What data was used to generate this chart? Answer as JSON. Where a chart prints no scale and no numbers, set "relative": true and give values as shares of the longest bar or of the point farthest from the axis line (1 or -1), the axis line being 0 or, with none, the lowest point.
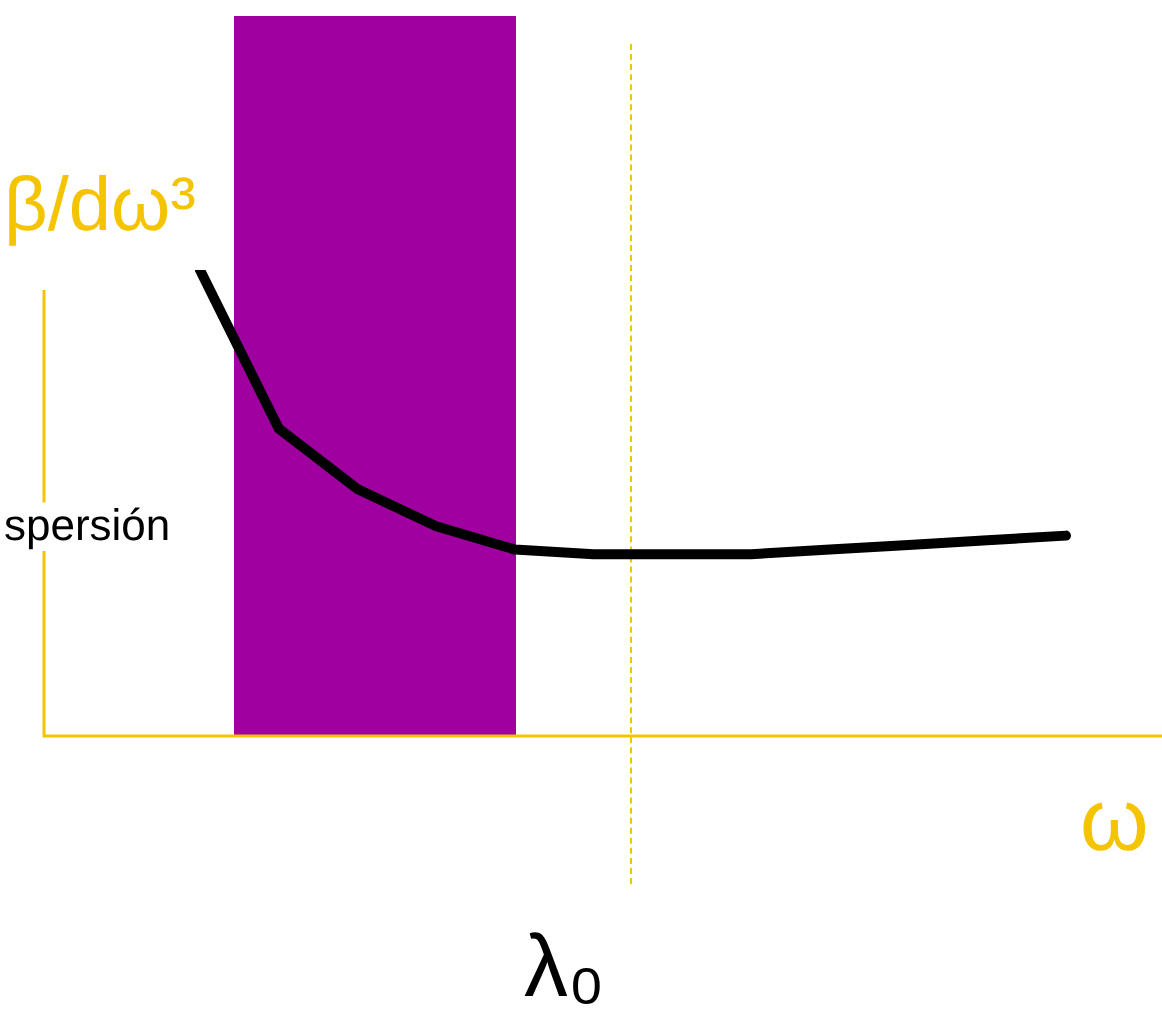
{
  "chart_data": {
    "type": "line",
    "relative": true,
    "marker": "none",
    "line_style": "solid",
    "ylabel": "β/dω³",
    "xlabel": "ω",
    "annotations": [
      "spersión",
      "λ₀"
    ],
    "categories": [
      null,
      null,
      null,
      null,
      null,
      null,
      null,
      null,
      null,
      null,
      null,
      null
    ],
    "series": [
      {
        "color": "#000000",
        "values": [
          1.0,
          0.66,
          0.53,
          0.45,
          0.4,
          0.39,
          0.39,
          0.39,
          0.4,
          0.41,
          0.42,
          0.43
        ]
      }
    ]
  }
}
